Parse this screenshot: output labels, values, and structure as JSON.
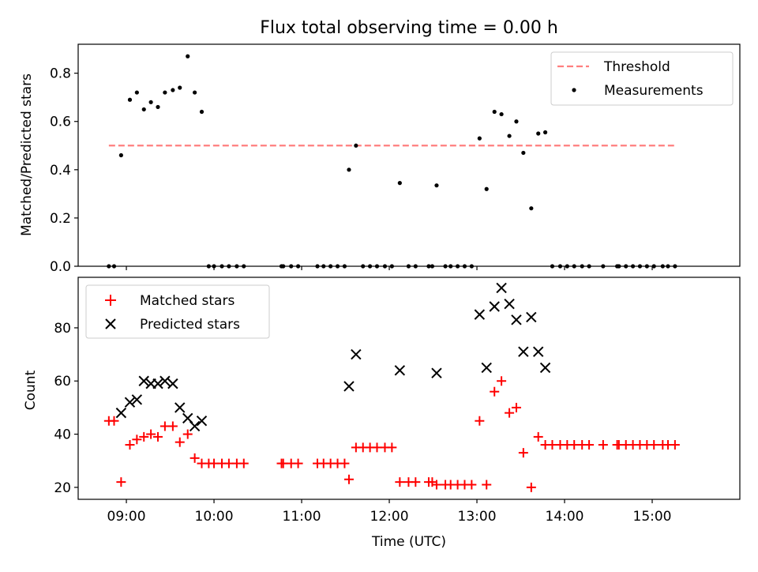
{
  "chart_data": [
    {
      "type": "scatter",
      "title": "Flux total observing time = 0.00 h",
      "ylabel": "Matched/Predicted stars",
      "xlabel": "",
      "xlim": [
        8.45,
        16.0
      ],
      "ylim": [
        0.0,
        0.92
      ],
      "yticks": [
        0.0,
        0.2,
        0.4,
        0.6,
        0.8
      ],
      "ytick_labels": [
        "0.0",
        "0.2",
        "0.4",
        "0.6",
        "0.8"
      ],
      "legend_position": "upper-right",
      "threshold": {
        "name": "Threshold",
        "value": 0.5,
        "x_range": [
          8.8,
          15.25
        ],
        "color": "#ff7f7f"
      },
      "measurements": {
        "name": "Measurements",
        "color": "#000000",
        "x": [
          8.8,
          8.86,
          8.94,
          9.04,
          9.12,
          9.2,
          9.28,
          9.36,
          9.44,
          9.53,
          9.61,
          9.7,
          9.78,
          9.86,
          9.94,
          10.0,
          10.09,
          10.17,
          10.26,
          10.34,
          10.77,
          10.79,
          10.88,
          10.96,
          11.18,
          11.25,
          11.33,
          11.41,
          11.49,
          11.54,
          11.62,
          11.7,
          11.78,
          11.86,
          11.95,
          12.03,
          12.12,
          12.22,
          12.3,
          12.45,
          12.49,
          12.54,
          12.64,
          12.7,
          12.78,
          12.86,
          12.94,
          13.03,
          13.11,
          13.2,
          13.28,
          13.37,
          13.45,
          13.53,
          13.62,
          13.7,
          13.78,
          13.86,
          13.95,
          14.03,
          14.11,
          14.2,
          14.28,
          14.44,
          14.6,
          14.62,
          14.7,
          14.78,
          14.86,
          14.94,
          15.02,
          15.12,
          15.18,
          15.26
        ],
        "y": [
          0.0,
          0.0,
          0.46,
          0.69,
          0.72,
          0.65,
          0.68,
          0.66,
          0.72,
          0.73,
          0.74,
          0.87,
          0.72,
          0.64,
          0.0,
          0.0,
          0.0,
          0.0,
          0.0,
          0.0,
          0.0,
          0.0,
          0.0,
          0.0,
          0.0,
          0.0,
          0.0,
          0.0,
          0.0,
          0.4,
          0.5,
          0.0,
          0.0,
          0.0,
          0.0,
          0.0,
          0.345,
          0.0,
          0.0,
          0.0,
          0.0,
          0.335,
          0.0,
          0.0,
          0.0,
          0.0,
          0.0,
          0.53,
          0.32,
          0.64,
          0.63,
          0.54,
          0.6,
          0.47,
          0.24,
          0.55,
          0.555,
          0.0,
          0.0,
          0.0,
          0.0,
          0.0,
          0.0,
          0.0,
          0.0,
          0.0,
          0.0,
          0.0,
          0.0,
          0.0,
          0.0,
          0.0,
          0.0,
          0.0
        ]
      }
    },
    {
      "type": "scatter",
      "title": "",
      "xlabel": "Time (UTC)",
      "ylabel": "Count",
      "xlim": [
        8.45,
        16.0
      ],
      "ylim": [
        15.5,
        99.0
      ],
      "yticks": [
        20,
        40,
        60,
        80
      ],
      "ytick_labels": [
        "20",
        "40",
        "60",
        "80"
      ],
      "xticks": [
        9,
        10,
        11,
        12,
        13,
        14,
        15
      ],
      "xtick_labels": [
        "09:00",
        "10:00",
        "11:00",
        "12:00",
        "13:00",
        "14:00",
        "15:00"
      ],
      "legend_position": "upper-left",
      "series": [
        {
          "name": "Matched stars",
          "marker": "+",
          "color": "#ff0000",
          "x": [
            8.8,
            8.86,
            8.94,
            9.04,
            9.12,
            9.2,
            9.28,
            9.36,
            9.44,
            9.53,
            9.61,
            9.7,
            9.78,
            9.86,
            9.94,
            10.0,
            10.09,
            10.17,
            10.26,
            10.34,
            10.77,
            10.79,
            10.88,
            10.96,
            11.18,
            11.25,
            11.33,
            11.41,
            11.49,
            11.54,
            11.62,
            11.7,
            11.78,
            11.86,
            11.95,
            12.03,
            12.12,
            12.22,
            12.3,
            12.45,
            12.49,
            12.54,
            12.64,
            12.7,
            12.78,
            12.86,
            12.94,
            13.03,
            13.11,
            13.2,
            13.28,
            13.37,
            13.45,
            13.53,
            13.62,
            13.7,
            13.78,
            13.86,
            13.95,
            14.03,
            14.11,
            14.2,
            14.28,
            14.44,
            14.6,
            14.62,
            14.7,
            14.78,
            14.86,
            14.94,
            15.02,
            15.12,
            15.18,
            15.26
          ],
          "y": [
            45,
            45,
            22,
            36,
            38,
            39,
            40,
            39,
            43,
            43,
            37,
            40,
            31,
            29,
            29,
            29,
            29,
            29,
            29,
            29,
            29,
            29,
            29,
            29,
            29,
            29,
            29,
            29,
            29,
            23,
            35,
            35,
            35,
            35,
            35,
            35,
            22,
            22,
            22,
            22,
            22,
            21,
            21,
            21,
            21,
            21,
            21,
            45,
            21,
            56,
            60,
            48,
            50,
            33,
            20,
            39,
            36,
            36,
            36,
            36,
            36,
            36,
            36,
            36,
            36,
            36,
            36,
            36,
            36,
            36,
            36,
            36,
            36,
            36
          ]
        },
        {
          "name": "Predicted stars",
          "marker": "x",
          "color": "#000000",
          "x": [
            8.94,
            9.04,
            9.12,
            9.2,
            9.28,
            9.36,
            9.44,
            9.53,
            9.61,
            9.7,
            9.78,
            9.86,
            11.54,
            11.62,
            12.12,
            12.54,
            13.03,
            13.11,
            13.2,
            13.28,
            13.37,
            13.45,
            13.53,
            13.62,
            13.7,
            13.78
          ],
          "y": [
            48,
            52,
            53,
            60,
            59,
            59,
            60,
            59,
            50,
            46,
            43,
            45,
            58,
            70,
            64,
            63,
            85,
            65,
            88,
            95,
            89,
            83,
            71,
            84,
            71,
            65
          ]
        }
      ]
    }
  ]
}
